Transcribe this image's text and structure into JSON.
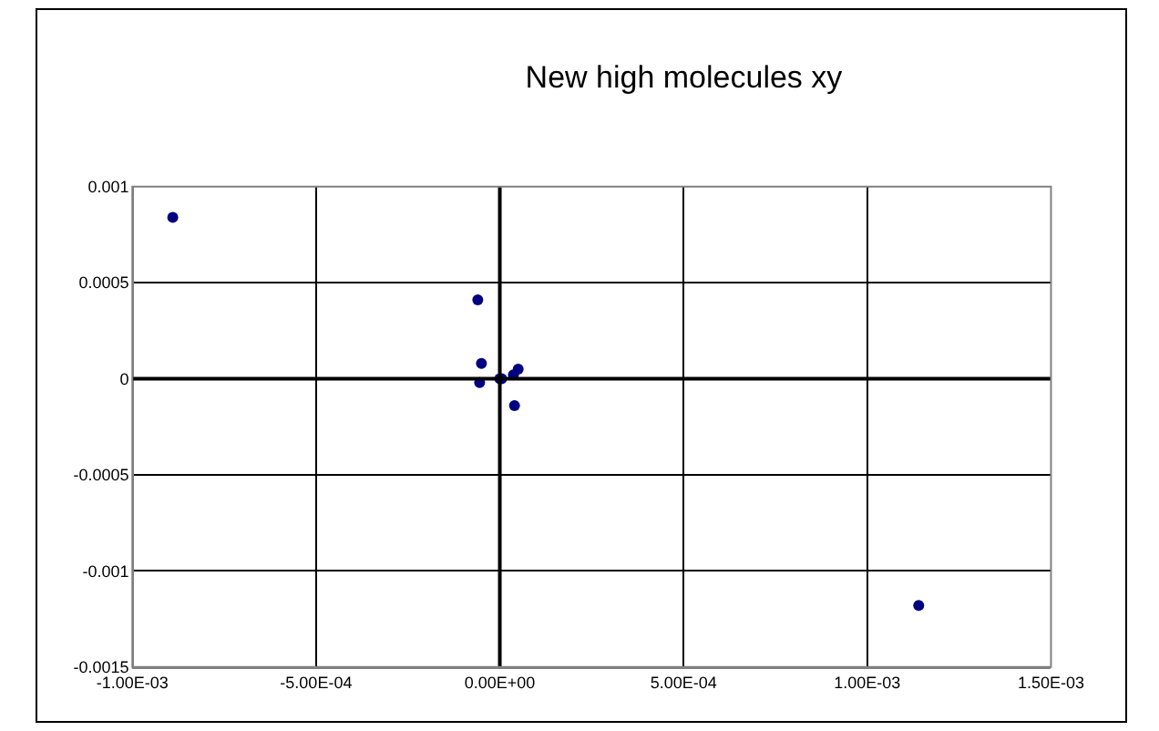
{
  "chart_data": {
    "type": "scatter",
    "title": "New high molecules xy",
    "x": [
      -0.00089,
      -6e-05,
      -5e-05,
      -5.5e-05,
      0,
      5e-06,
      3.7e-05,
      5e-05,
      4e-05,
      0.00114
    ],
    "values": [
      0.00084,
      0.00041,
      8e-05,
      -2e-05,
      0,
      0,
      2e-05,
      5e-05,
      -0.00014,
      -0.00118
    ],
    "color": "#000080",
    "marker": "circle",
    "xlim": [
      -0.001,
      0.0015
    ],
    "xticks": [
      {
        "value": -0.001,
        "label": "-1.00E-03"
      },
      {
        "value": -0.0005,
        "label": "-5.00E-04"
      },
      {
        "value": 0,
        "label": "0.00E+00"
      },
      {
        "value": 0.0005,
        "label": "5.00E-04"
      },
      {
        "value": 0.001,
        "label": "1.00E-03"
      },
      {
        "value": 0.0015,
        "label": "1.50E-03"
      }
    ],
    "ylim": [
      -0.0015,
      0.001
    ],
    "yticks": [
      0.001,
      0.0005,
      0,
      -0.0005,
      -0.001,
      -0.0015
    ],
    "grid": true
  }
}
